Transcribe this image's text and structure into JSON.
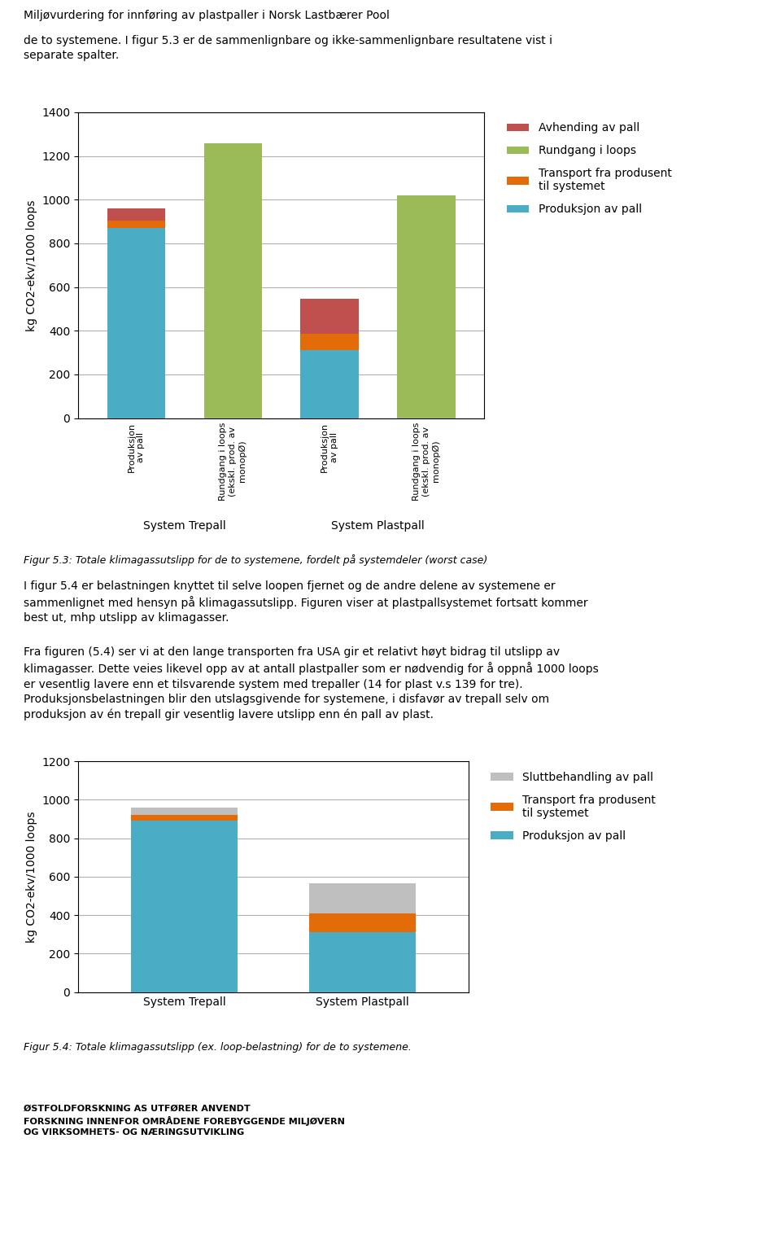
{
  "title": "Miljøvurdering for innføring av plastpaller i Norsk Lastbærer Pool",
  "annotations": [
    "de to systemene. I figur 5.3 er de sammenlignbare og ikke-sammenlignbare resultatene vist i\nseparate spalter.",
    "Figur 5.3: Totale klimagassutslipp for de to systemene, fordelt på systemdeler (worst case)",
    "I figur 5.4 er belastningen knyttet til selve loopen fjernet og de andre delene av systemene er\nsammenlignet med hensyn på klimagassutslipp. Figuren viser at plastpallsystemet fortsatt kommer\nbest ut, mhp utslipp av klimagasser.",
    "Fra figuren (5.4) ser vi at den lange transporten fra USA gir et relativt høyt bidrag til utslipp av\nklimagasser. Dette veies likevel opp av at antall plastpaller som er nødvendig for å oppnå 1000 loops\ner vesentlig lavere enn et tilsvarende system med trepaller (14 for plast v.s 139 for tre).\nProduksjonsbelastningen blir den utslagsgivende for systemene, i disfavør av trepall selv om\nproduksjon av én trepall gir vesentlig lavere utslipp enn én pall av plast.",
    "Figur 5.4: Totale klimagassutslipp (ex. loop-belastning) for de to systemene.",
    "ØSTFOLDFORSKNING AS UTFØRER ANVENDT\nFORSKNING INNENFOR OMRÅDENE FOREBYGGENDE MILJØVERN\nOG VIRKSOMHETS- OG NÆRINGSUTVIKLING"
  ],
  "chart_data": [
    {
      "type": "bar",
      "stacked": true,
      "categories": [
        "Produksjon\nav pall",
        "Rundgang i loops\n(ekskl. prod. av\nmonopØ)",
        "Produksjon\nav pall",
        "Rundgang i loops\n(ekskl. prod. av\nmonopØ)"
      ],
      "series": [
        {
          "name": "Avhending av pall",
          "color": "#C0504D",
          "values": [
            55,
            null,
            160,
            null
          ]
        },
        {
          "name": "Rundgang i loops",
          "color": "#9BBB59",
          "values": [
            null,
            1260,
            null,
            1020
          ]
        },
        {
          "name": "Transport fra produsent\ntil systemet",
          "color": "#E36C09",
          "values": [
            35,
            null,
            75,
            null
          ]
        },
        {
          "name": "Produksjon av pall",
          "color": "#4BACC6",
          "values": [
            870,
            null,
            310,
            null
          ]
        }
      ],
      "ylabel": "kg CO2-ekv/1000 loops",
      "ylim": [
        0,
        1400
      ],
      "yticks": [
        0,
        200,
        400,
        600,
        800,
        1000,
        1200,
        1400
      ],
      "grid": true,
      "legend": "upper left",
      "annotations": [
        "System Trepall",
        "System Plastpall"
      ]
    },
    {
      "type": "bar",
      "stacked": true,
      "categories": [
        "System Trepall",
        "System Plastpall"
      ],
      "series": [
        {
          "name": "Sluttbehandling av pall",
          "color": "#BFBFBF",
          "values": [
            40,
            155
          ]
        },
        {
          "name": "Transport fra produsent\ntil systemet",
          "color": "#E36C09",
          "values": [
            30,
            100
          ]
        },
        {
          "name": "Produksjon av pall",
          "color": "#4BACC6",
          "values": [
            890,
            310
          ]
        }
      ],
      "ylabel": "kg CO2-ekv/1000 loops",
      "ylim": [
        0,
        1200
      ],
      "yticks": [
        0,
        200,
        400,
        600,
        800,
        1000,
        1200
      ],
      "grid": true,
      "legend": "upper left"
    }
  ]
}
